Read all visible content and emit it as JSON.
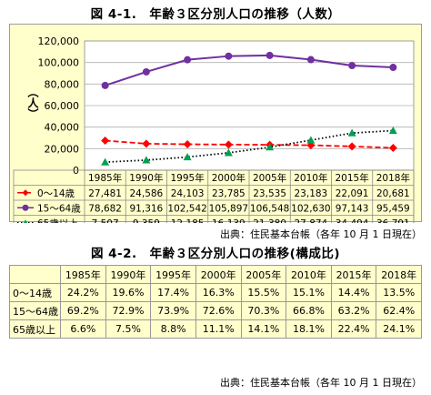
{
  "chart_title": "図 4-1.　年齢３区分別人口の推移（人数）",
  "table_title": "図 4-2.　年齢３区分別人口の推移(構成比)",
  "source_1": "出典：住民基本台帳（各年 10 月 1 日現在）",
  "source_2": "出典：住民基本台帳（各年 10 月 1 日現在）",
  "chart_data": {
    "type": "line",
    "title": "図 4-1.　年齢３区分別人口の推移（人数）",
    "ylabel": "（人）",
    "xlabel": "",
    "ylim": [
      0,
      120000
    ],
    "yticks": [
      "120,000",
      "100,000",
      "80,000",
      "60,000",
      "40,000",
      "20,000",
      "0"
    ],
    "grid": true,
    "categories": [
      "1985年",
      "1990年",
      "1995年",
      "2000年",
      "2005年",
      "2010年",
      "2015年",
      "2018年"
    ],
    "series": [
      {
        "name": "0～14歳",
        "color": "#ff0000",
        "marker": "diamond",
        "line": "dashed",
        "values": [
          27481,
          24586,
          24103,
          23785,
          23535,
          23183,
          22091,
          20681
        ],
        "labels": [
          "27,481",
          "24,586",
          "24,103",
          "23,785",
          "23,535",
          "23,183",
          "22,091",
          "20,681"
        ]
      },
      {
        "name": "15～64歳",
        "color": "#7030a0",
        "marker": "circle",
        "line": "solid",
        "values": [
          78682,
          91316,
          102542,
          105897,
          106548,
          102630,
          97143,
          95459
        ],
        "labels": [
          "78,682",
          "91,316",
          "102,542",
          "105,897",
          "106,548",
          "102,630",
          "97,143",
          "95,459"
        ]
      },
      {
        "name": "65歳以上",
        "color": "#00a050",
        "marker": "triangle",
        "line": "dotted",
        "values": [
          7507,
          9359,
          12185,
          16139,
          21380,
          27874,
          34494,
          36791
        ],
        "labels": [
          "7,507",
          "9,359",
          "12,185",
          "16,139",
          "21,380",
          "27,874",
          "34,494",
          "36,791"
        ]
      }
    ]
  },
  "ratio_table": {
    "headers": [
      "",
      "1985年",
      "1990年",
      "1995年",
      "2000年",
      "2005年",
      "2010年",
      "2015年",
      "2018年"
    ],
    "rows": [
      {
        "label": "0～14歳",
        "cells": [
          "24.2%",
          "19.6%",
          "17.4%",
          "16.3%",
          "15.5%",
          "15.1%",
          "14.4%",
          "13.5%"
        ]
      },
      {
        "label": "15～64歳",
        "cells": [
          "69.2%",
          "72.9%",
          "73.9%",
          "72.6%",
          "70.3%",
          "66.8%",
          "63.2%",
          "62.4%"
        ]
      },
      {
        "label": "65歳以上",
        "cells": [
          "6.6%",
          "7.5%",
          "8.8%",
          "11.1%",
          "14.1%",
          "18.1%",
          "22.4%",
          "24.1%"
        ]
      }
    ]
  }
}
